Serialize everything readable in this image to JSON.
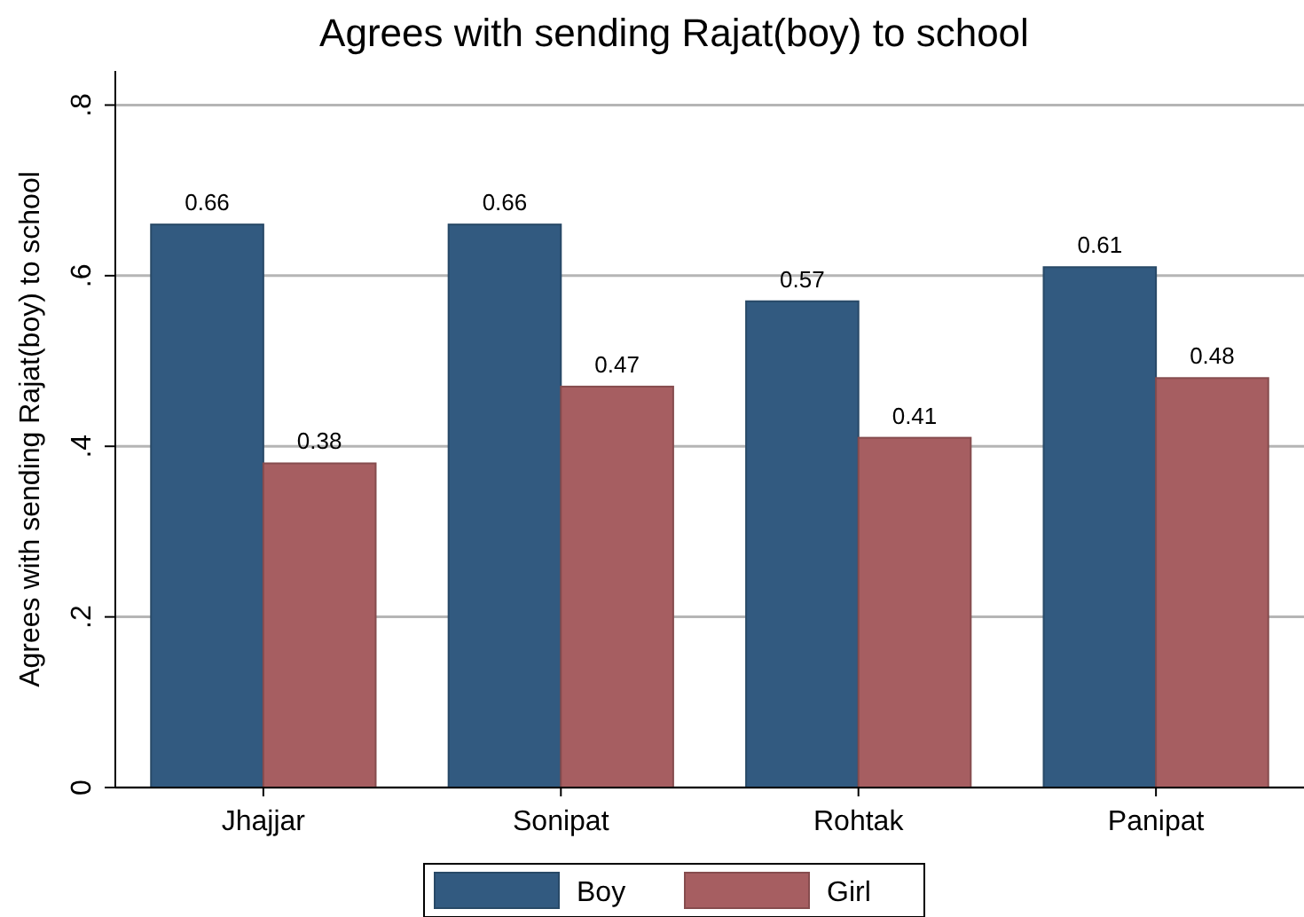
{
  "chart_data": {
    "type": "bar",
    "title": "Agrees with sending Rajat(boy) to school",
    "ylabel": "Agrees with sending Rajat(boy) to school",
    "categories": [
      "Jhajjar",
      "Sonipat",
      "Rohtak",
      "Panipat"
    ],
    "series": [
      {
        "name": "Boy",
        "color": "#325a80",
        "values": [
          0.66,
          0.66,
          0.57,
          0.61
        ]
      },
      {
        "name": "Girl",
        "color": "#a65e61",
        "values": [
          0.38,
          0.47,
          0.41,
          0.48
        ]
      }
    ],
    "ylim": [
      0,
      0.84
    ],
    "yticks": [
      {
        "value": 0,
        "label": "0"
      },
      {
        "value": 0.2,
        "label": ".2"
      },
      {
        "value": 0.4,
        "label": ".4"
      },
      {
        "value": 0.6,
        "label": ".6"
      },
      {
        "value": 0.8,
        "label": ".8"
      }
    ],
    "grid": "y",
    "data_labels": true,
    "legend": "bottom"
  }
}
